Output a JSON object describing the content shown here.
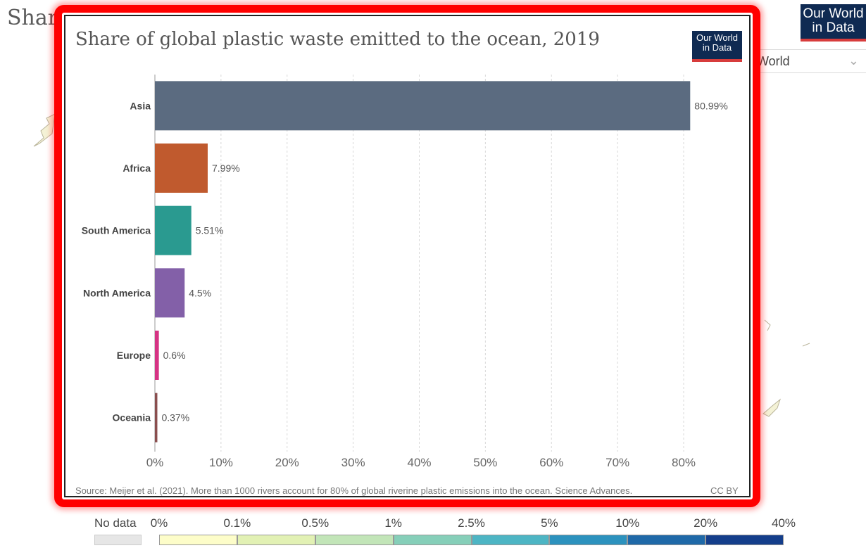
{
  "background": {
    "page_title_fragment": "Shar",
    "logo_line1": "Our World",
    "logo_line2": "in Data",
    "region_select": "World"
  },
  "card": {
    "title": "Share of global plastic waste emitted to the ocean, 2019",
    "logo_line1": "Our World",
    "logo_line2": "in Data",
    "source": "Source: Meijer et al. (2021). More than 1000 rivers account for 80% of global riverine plastic emissions into the ocean. Science Advances.",
    "license": "CC BY"
  },
  "legend": {
    "no_data": "No data",
    "ticks": [
      "0%",
      "0.1%",
      "0.5%",
      "1%",
      "2.5%",
      "5%",
      "10%",
      "20%",
      "40%"
    ],
    "colors": [
      "#fdfdc9",
      "#e2f1b4",
      "#c2e5b8",
      "#86cfb9",
      "#4db5c4",
      "#2c92be",
      "#1f69a8",
      "#143e8b"
    ]
  },
  "chart_data": {
    "type": "bar",
    "orientation": "horizontal",
    "title": "Share of global plastic waste emitted to the ocean, 2019",
    "categories": [
      "Asia",
      "Africa",
      "South America",
      "North America",
      "Europe",
      "Oceania"
    ],
    "values": [
      80.99,
      7.99,
      5.51,
      4.5,
      0.6,
      0.37
    ],
    "value_labels": [
      "80.99%",
      "7.99%",
      "5.51%",
      "4.5%",
      "0.6%",
      "0.37%"
    ],
    "colors": [
      "#5b6b80",
      "#c05a2e",
      "#2a9a90",
      "#8360a8",
      "#d63384",
      "#8a4e4e"
    ],
    "xlim": [
      0,
      80
    ],
    "xticks": [
      0,
      10,
      20,
      30,
      40,
      50,
      60,
      70,
      80
    ],
    "xtick_labels": [
      "0%",
      "10%",
      "20%",
      "30%",
      "40%",
      "50%",
      "60%",
      "70%",
      "80%"
    ],
    "grid": "vertical dashed"
  }
}
